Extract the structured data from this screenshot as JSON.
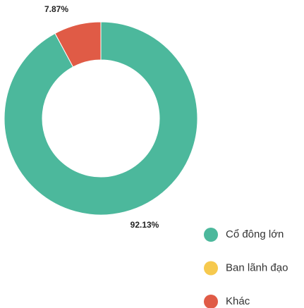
{
  "chart_data": {
    "type": "donut",
    "categories": [
      "Cổ đông lớn",
      "Ban lãnh đạo",
      "Khác"
    ],
    "values": [
      92.13,
      0,
      7.87
    ],
    "value_labels": [
      "92.13%",
      null,
      "7.87%"
    ],
    "colors": [
      "#4cb89c",
      "#f6c94e",
      "#e05b46"
    ]
  }
}
